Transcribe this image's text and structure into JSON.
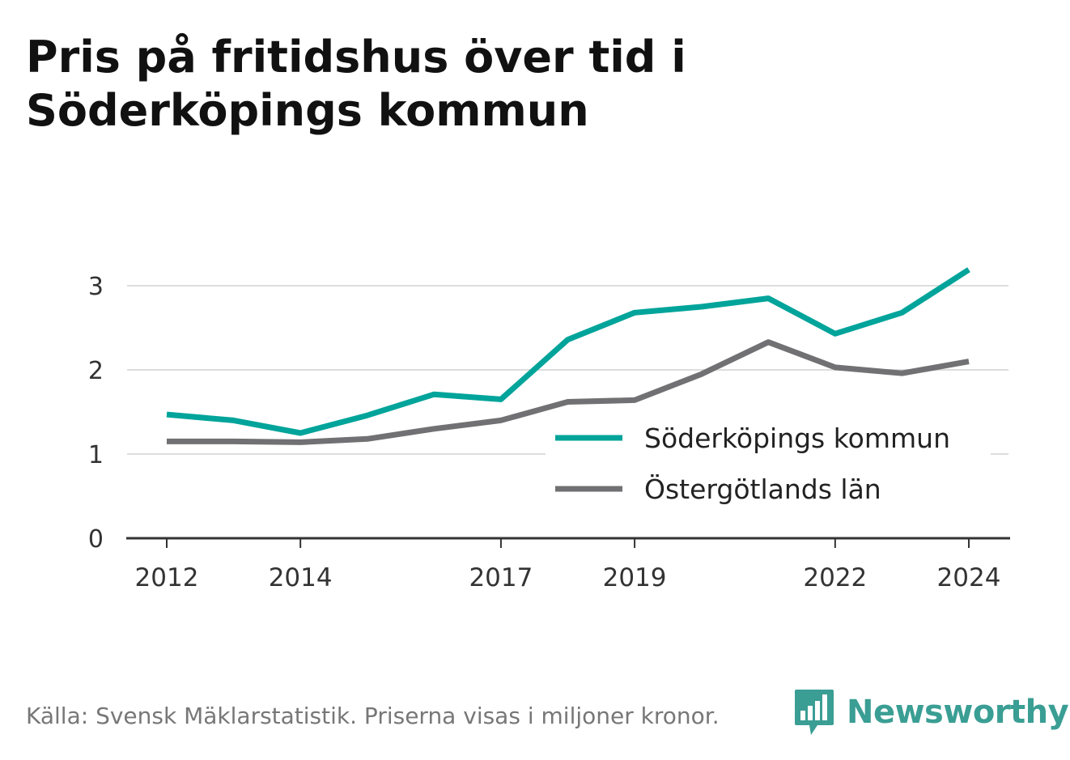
{
  "title": "Pris på fritidshus över tid i Söderköpings kommun",
  "footer": {
    "source": "Källa: Svensk Mäklarstatistik. Priserna visas i miljoner kronor."
  },
  "brand": {
    "name": "Newsworthy",
    "icon": "bar-chart-speech-bubble-icon",
    "color": "#3a9e94"
  },
  "chart_data": {
    "type": "line",
    "x": [
      2012,
      2013,
      2014,
      2015,
      2016,
      2017,
      2018,
      2019,
      2020,
      2021,
      2022,
      2023,
      2024
    ],
    "x_tick_labels": [
      "2012",
      "2014",
      "2017",
      "2019",
      "2022",
      "2024"
    ],
    "y_ticks": [
      0,
      1,
      2,
      3
    ],
    "ylim": [
      0,
      3.25
    ],
    "xlim": [
      2011.4,
      2024.6
    ],
    "grid": true,
    "legend_position": "bottom-right",
    "series": [
      {
        "name": "Söderköpings kommun",
        "color": "#00a49a",
        "values": [
          1.47,
          1.4,
          1.25,
          1.46,
          1.71,
          1.65,
          2.36,
          2.68,
          2.75,
          2.85,
          2.43,
          2.68,
          3.19
        ]
      },
      {
        "name": "Östergötlands län",
        "color": "#717174",
        "values": [
          1.15,
          1.15,
          1.14,
          1.18,
          1.3,
          1.4,
          1.62,
          1.64,
          1.95,
          2.33,
          2.03,
          1.96,
          2.1
        ]
      }
    ]
  }
}
